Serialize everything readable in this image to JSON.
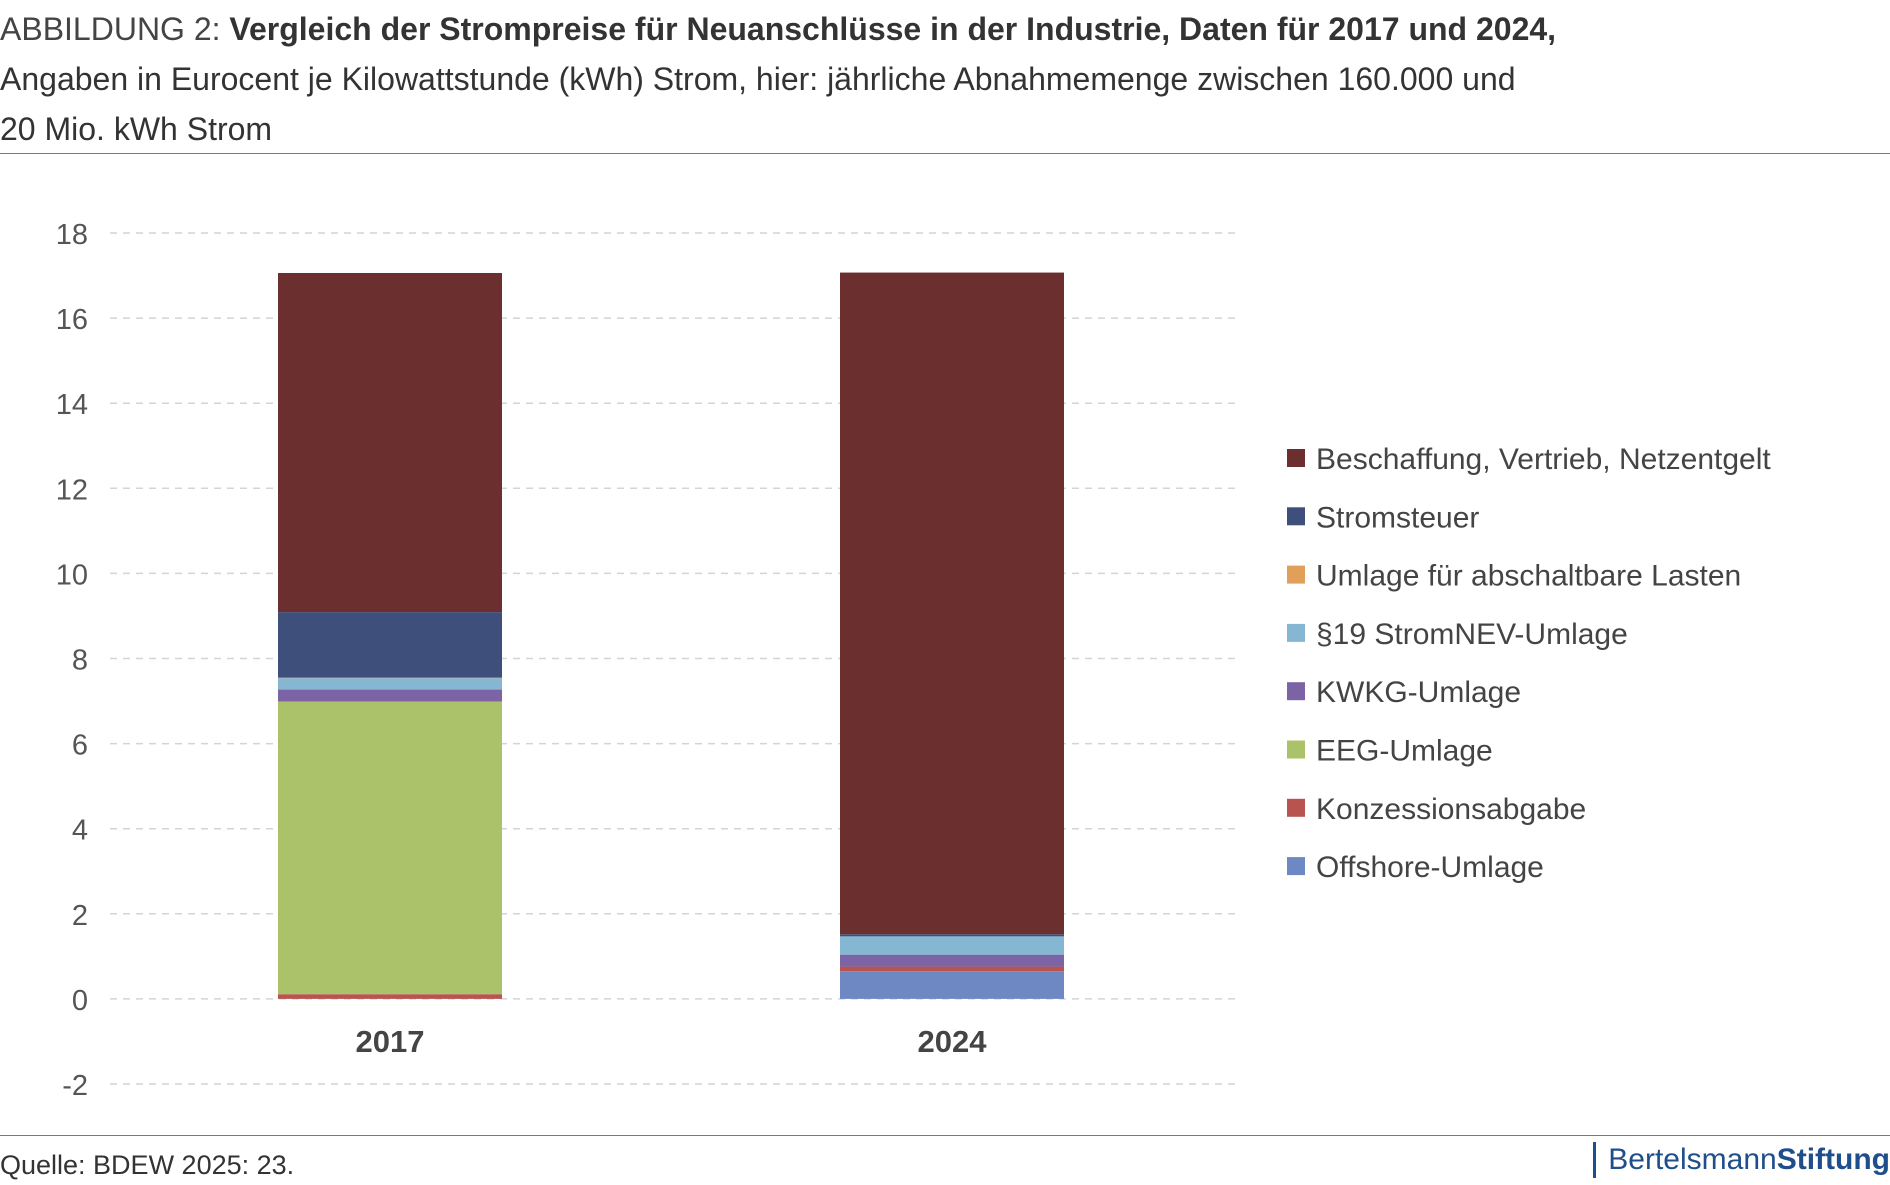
{
  "header": {
    "label": "ABBILDUNG 2:",
    "title": "Vergleich der Strompreise für Neuanschlüsse in der Industrie, Daten für 2017 und 2024,",
    "subtitle_line1": "Angaben in Eurocent je Kilowattstunde (kWh) Strom, hier: jährliche Abnahmemenge zwischen 160.000 und",
    "subtitle_line2": "20 Mio. kWh Strom"
  },
  "footer": {
    "source": "Quelle: BDEW 2025: 23.",
    "logo_part1": "Bertelsmann",
    "logo_part2": "Stiftung"
  },
  "colors": {
    "Offshore-Umlage": "#6e88c4",
    "Konzessionsabgabe": "#b85450",
    "EEG-Umlage": "#abc26b",
    "KWKG-Umlage": "#7b63a6",
    "§19 StromNEV-Umlage": "#86b7d2",
    "Umlage für abschaltbare Lasten": "#e0a05a",
    "Stromsteuer": "#3e4f7c",
    "Beschaffung, Vertrieb, Netzentgelt": "#6b2f2f",
    "grid": "#d4d4d4",
    "brand": "#1f4e8c"
  },
  "chart_data": {
    "type": "bar",
    "stacked": true,
    "categories": [
      "2017",
      "2024"
    ],
    "ylim": [
      -2,
      18
    ],
    "yticks": [
      -2,
      0,
      2,
      4,
      6,
      8,
      10,
      12,
      14,
      16,
      18
    ],
    "grid": true,
    "legend_position": "right",
    "series": [
      {
        "name": "Offshore-Umlage",
        "values": [
          0.0,
          0.65
        ]
      },
      {
        "name": "Konzessionsabgabe",
        "values": [
          0.11,
          0.11
        ]
      },
      {
        "name": "EEG-Umlage",
        "values": [
          6.88,
          0.0
        ]
      },
      {
        "name": "KWKG-Umlage",
        "values": [
          0.28,
          0.28
        ]
      },
      {
        "name": "§19 StromNEV-Umlage",
        "values": [
          0.27,
          0.43
        ]
      },
      {
        "name": "Umlage für abschaltbare Lasten",
        "values": [
          0.01,
          0.0
        ]
      },
      {
        "name": "Stromsteuer",
        "values": [
          1.54,
          0.05
        ]
      },
      {
        "name": "Beschaffung, Vertrieb, Netzentgelt",
        "values": [
          7.97,
          15.55
        ]
      }
    ],
    "legend_order": [
      "Beschaffung, Vertrieb, Netzentgelt",
      "Stromsteuer",
      "Umlage für abschaltbare Lasten",
      "§19 StromNEV-Umlage",
      "KWKG-Umlage",
      "EEG-Umlage",
      "Konzessionsabgabe",
      "Offshore-Umlage"
    ]
  }
}
